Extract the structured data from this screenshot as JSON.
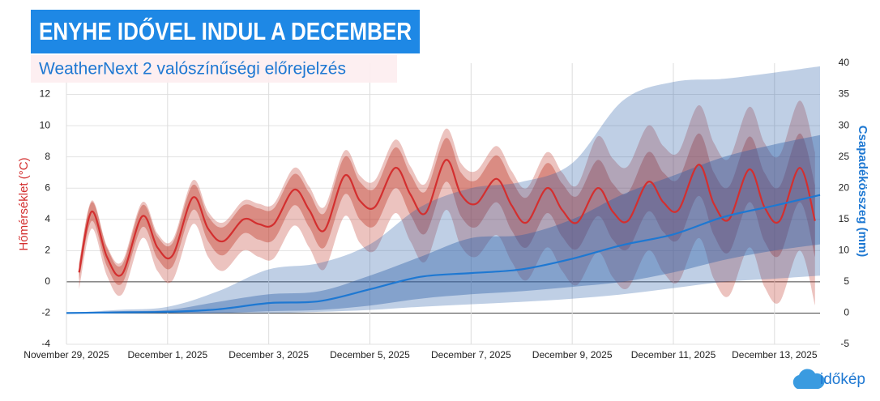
{
  "chart_data": {
    "type": "line",
    "title": "ENYHE IDŐVEL INDUL A DECEMBER",
    "subtitle": "WeatherNext 2 valószínűségi előrejelzés",
    "ylabel": "Hőmérséklet (°C)",
    "y2label": "Csapadékösszeg (mm)",
    "source": "időkép",
    "grid": true,
    "xlim": [
      0,
      14.9
    ],
    "xticks": [
      {
        "value": 0,
        "label": "November 29, 2025"
      },
      {
        "value": 2,
        "label": "December 1, 2025"
      },
      {
        "value": 4,
        "label": "December 3, 2025"
      },
      {
        "value": 6,
        "label": "December 5, 2025"
      },
      {
        "value": 8,
        "label": "December 7, 2025"
      },
      {
        "value": 10,
        "label": "December 9, 2025"
      },
      {
        "value": 12,
        "label": "December 11, 2025"
      },
      {
        "value": 14,
        "label": "December 13, 2025"
      }
    ],
    "ylim": [
      -4,
      14
    ],
    "yticks": [
      -4,
      -2,
      0,
      2,
      4,
      6,
      8,
      10,
      12
    ],
    "y2lim": [
      -5,
      40
    ],
    "y2ticks": [
      -5,
      0,
      5,
      10,
      15,
      20,
      25,
      30,
      35,
      40
    ],
    "series": [
      {
        "color": "#d32f2f",
        "band_color": "#c0392b",
        "axis": "y",
        "x": [
          0.25,
          0.5,
          0.8,
          1.1,
          1.5,
          1.8,
          2.1,
          2.5,
          2.8,
          3.1,
          3.5,
          3.8,
          4.1,
          4.5,
          4.8,
          5.1,
          5.5,
          5.8,
          6.1,
          6.5,
          6.8,
          7.1,
          7.5,
          7.8,
          8.1,
          8.5,
          8.8,
          9.1,
          9.5,
          9.8,
          10.1,
          10.5,
          10.8,
          11.1,
          11.5,
          11.8,
          12.1,
          12.5,
          12.8,
          13.1,
          13.5,
          13.8,
          14.1,
          14.5,
          14.8
        ],
        "values": [
          0.6,
          4.5,
          1.6,
          0.5,
          4.2,
          2.2,
          1.7,
          5.4,
          3.4,
          2.6,
          4.0,
          3.7,
          3.7,
          5.9,
          4.6,
          3.3,
          6.8,
          5.2,
          4.8,
          7.3,
          5.6,
          4.4,
          7.8,
          5.6,
          5.0,
          6.6,
          4.9,
          3.8,
          6.0,
          4.6,
          3.8,
          6.0,
          4.5,
          3.9,
          6.4,
          5.1,
          4.6,
          7.5,
          5.0,
          4.0,
          7.2,
          4.8,
          3.9,
          7.3,
          3.9
        ],
        "inner_low": [
          0.1,
          3.9,
          1.0,
          -0.1,
          3.5,
          1.5,
          1.0,
          4.6,
          2.6,
          1.7,
          3.1,
          2.7,
          2.7,
          4.9,
          3.5,
          2.2,
          5.6,
          4.0,
          3.6,
          6.0,
          4.3,
          3.1,
          6.4,
          4.2,
          3.5,
          5.1,
          3.3,
          2.2,
          4.4,
          2.9,
          2.1,
          4.2,
          2.7,
          2.1,
          4.5,
          3.2,
          2.7,
          5.5,
          3.0,
          1.9,
          5.1,
          2.6,
          1.7,
          5.1,
          1.6
        ],
        "inner_high": [
          1.1,
          5.1,
          2.2,
          1.1,
          4.9,
          2.9,
          2.5,
          6.2,
          4.2,
          3.5,
          4.9,
          4.7,
          4.7,
          6.9,
          5.7,
          4.4,
          8.0,
          6.4,
          6.0,
          8.6,
          6.9,
          5.8,
          9.2,
          7.0,
          6.5,
          8.1,
          6.5,
          5.4,
          7.6,
          6.3,
          5.5,
          7.8,
          6.3,
          5.7,
          8.3,
          7.0,
          6.6,
          9.5,
          7.0,
          6.1,
          9.3,
          7.0,
          6.1,
          9.5,
          6.2
        ],
        "outer_low": [
          -0.5,
          3.4,
          0.4,
          -0.8,
          2.8,
          0.7,
          0.1,
          3.7,
          1.6,
          0.7,
          2.0,
          1.6,
          1.5,
          3.6,
          2.2,
          0.8,
          4.2,
          2.5,
          2.0,
          4.4,
          2.6,
          1.3,
          4.6,
          2.3,
          1.6,
          3.0,
          1.3,
          0.1,
          2.2,
          0.7,
          -0.2,
          1.9,
          0.3,
          -0.4,
          2.0,
          0.6,
          0.0,
          2.8,
          0.2,
          -0.9,
          2.2,
          -0.3,
          -1.3,
          2.0,
          -1.5
        ],
        "outer_high": [
          1.2,
          5.2,
          2.3,
          1.3,
          5.1,
          3.1,
          2.7,
          6.5,
          4.5,
          3.8,
          5.2,
          5.0,
          5.0,
          7.3,
          6.1,
          4.8,
          8.4,
          6.8,
          6.5,
          9.1,
          7.4,
          6.3,
          9.8,
          7.6,
          7.1,
          8.7,
          7.1,
          6.0,
          8.3,
          7.0,
          6.2,
          9.3,
          7.9,
          7.4,
          10.0,
          8.7,
          8.3,
          11.3,
          8.9,
          7.9,
          11.2,
          8.9,
          8.1,
          11.6,
          8.3
        ]
      },
      {
        "color": "#1e78d2",
        "band_color": "#2c5fa8",
        "axis": "y2",
        "x": [
          0,
          1,
          2,
          3,
          4,
          5,
          6,
          7,
          8,
          9,
          10,
          11,
          12,
          13,
          14,
          14.9
        ],
        "values": [
          0,
          0.1,
          0.2,
          0.6,
          1.6,
          1.9,
          3.8,
          5.8,
          6.4,
          7.0,
          8.7,
          10.9,
          12.6,
          15.4,
          17.2,
          18.9
        ],
        "inner_low": [
          0,
          0,
          0,
          0,
          0.3,
          0.5,
          1.2,
          2.3,
          3.0,
          3.5,
          4.2,
          5.0,
          6.5,
          8.5,
          10.0,
          11.0
        ],
        "inner_high": [
          0,
          0.3,
          0.5,
          1.8,
          3.0,
          3.5,
          6.0,
          9.0,
          12.0,
          12.5,
          15.0,
          19.0,
          22.0,
          25.0,
          27.0,
          28.5
        ],
        "outer_low": [
          0,
          0,
          0,
          0,
          0,
          0.2,
          0.5,
          1.0,
          1.4,
          1.8,
          2.3,
          3.0,
          4.0,
          5.0,
          5.5,
          6.0
        ],
        "outer_high": [
          0,
          0.5,
          1.0,
          3.5,
          7.0,
          8.0,
          11.0,
          17.0,
          20.0,
          21.0,
          24.0,
          34.0,
          37.0,
          37.5,
          38.5,
          39.5
        ]
      }
    ]
  }
}
